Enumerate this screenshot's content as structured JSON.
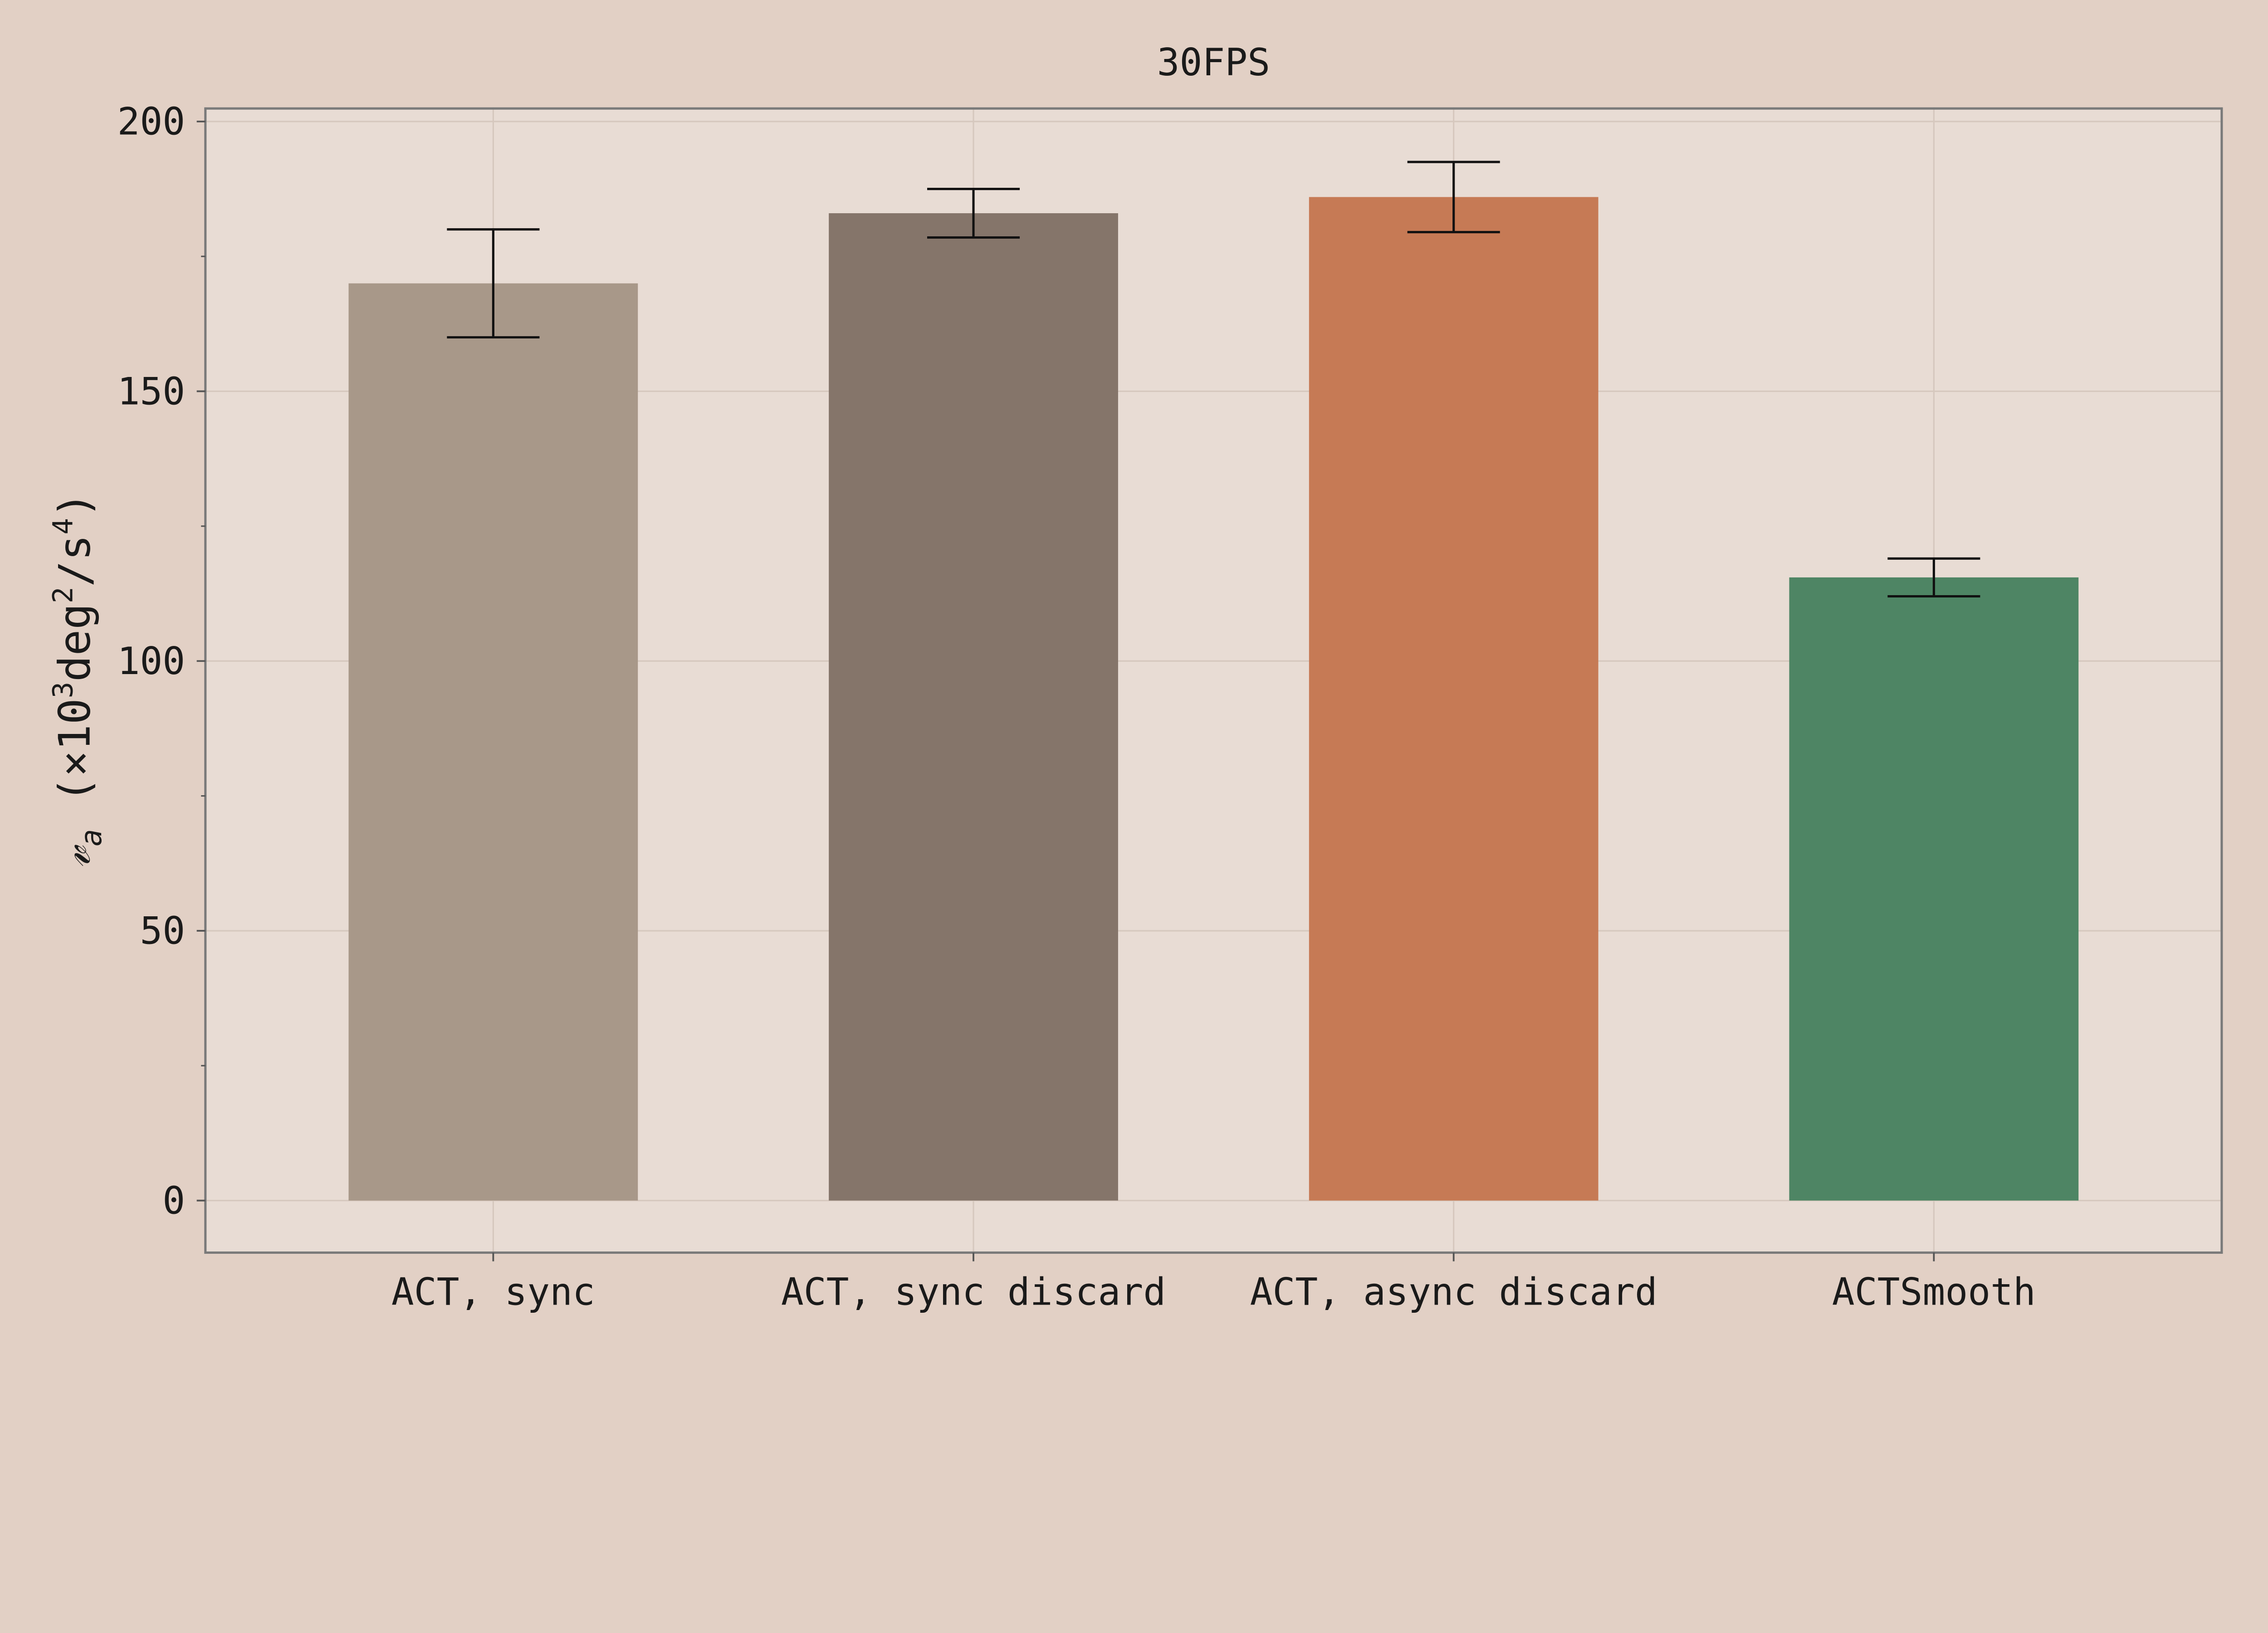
{
  "chart_data": {
    "type": "bar",
    "title": "30FPS",
    "xlabel": "",
    "ylabel_symbol": "𝓋",
    "ylabel_subscript": "a",
    "ylabel_unit_prefix": " (×10",
    "ylabel_unit_exp1": "3",
    "ylabel_unit_mid": "deg",
    "ylabel_unit_exp2": "2",
    "ylabel_unit_mid2": "/s",
    "ylabel_unit_exp3": "4",
    "ylabel_unit_suffix": ")",
    "ylim": [
      -10,
      202
    ],
    "yticks": [
      0,
      50,
      100,
      150,
      200
    ],
    "grid": true,
    "categories": [
      "ACT, sync",
      "ACT, sync discard",
      "ACT, async discard",
      "ACTSmooth"
    ],
    "values": [
      170,
      183,
      186,
      115.5
    ],
    "error_low": [
      160,
      178.5,
      179.5,
      112
    ],
    "error_high": [
      180,
      187.5,
      192.5,
      119
    ],
    "colors": [
      "#a89889",
      "#85756a",
      "#c67a55",
      "#4e8564"
    ]
  },
  "colors": {
    "background": "#e2d0c5",
    "plot_background": "#e8dcd4",
    "grid": "#d6c8be",
    "frame": "#7a7a7a"
  }
}
